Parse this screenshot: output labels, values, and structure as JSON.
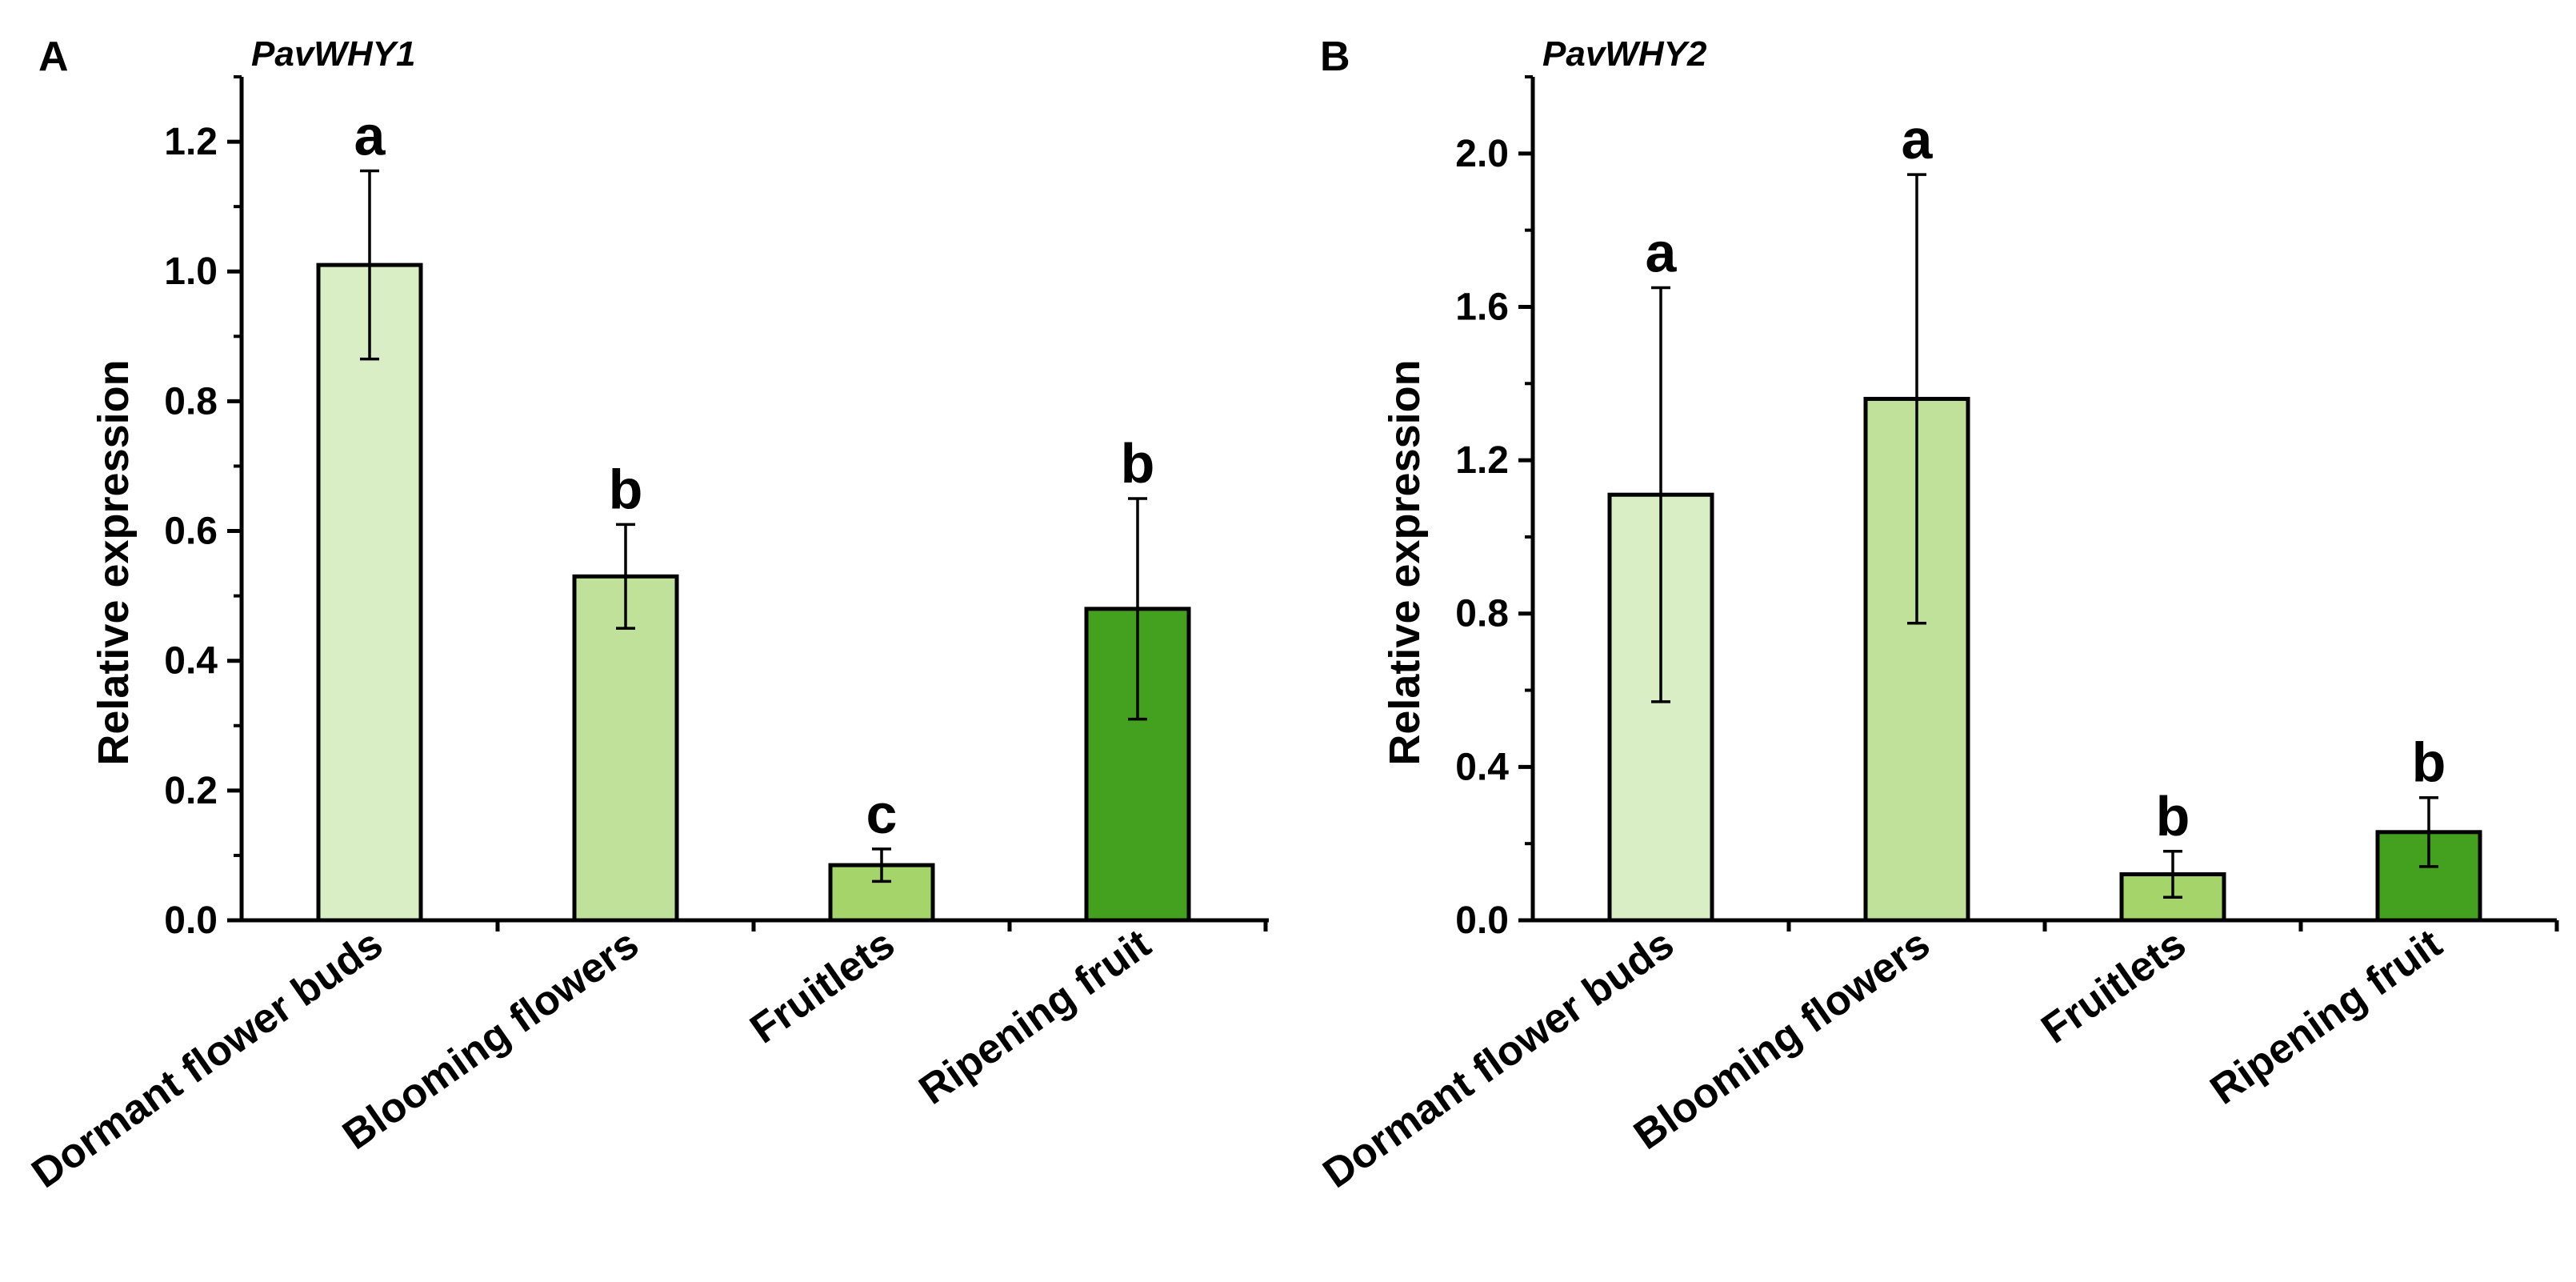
{
  "chart_data": [
    {
      "type": "bar",
      "panel": "A",
      "title": "PavWHY1",
      "xlabel": "",
      "ylabel": "Relative expression",
      "ylim": [
        0,
        1.3
      ],
      "ymajor_step": 0.2,
      "ytick_labels": [
        "0.0",
        "0.2",
        "0.4",
        "0.6",
        "0.8",
        "1.0",
        "1.2"
      ],
      "categories": [
        "Dormant flower buds",
        "Blooming flowers",
        "Fruitlets",
        "Ripening fruit"
      ],
      "values": [
        1.01,
        0.53,
        0.085,
        0.48
      ],
      "errors": [
        0.145,
        0.08,
        0.025,
        0.17
      ],
      "significance": [
        "a",
        "b",
        "c",
        "b"
      ],
      "colors": [
        "#d9eec4",
        "#bfe19a",
        "#a5d46a",
        "#44a11f"
      ],
      "grid": false,
      "legend": "none"
    },
    {
      "type": "bar",
      "panel": "B",
      "title": "PavWHY2",
      "xlabel": "",
      "ylabel": "Relative expression",
      "ylim": [
        0,
        2.2
      ],
      "ymajor_step": 0.4,
      "ytick_labels": [
        "0.0",
        "0.4",
        "0.8",
        "1.2",
        "1.6",
        "2.0"
      ],
      "categories": [
        "Dormant flower buds",
        "Blooming flowers",
        "Fruitlets",
        "Ripening fruit"
      ],
      "values": [
        1.11,
        1.36,
        0.12,
        0.23
      ],
      "errors": [
        0.54,
        0.585,
        0.06,
        0.09
      ],
      "significance": [
        "a",
        "a",
        "b",
        "b"
      ],
      "colors": [
        "#d9eec4",
        "#bfe19a",
        "#a5d46a",
        "#44a11f"
      ],
      "grid": false,
      "legend": "none"
    }
  ]
}
